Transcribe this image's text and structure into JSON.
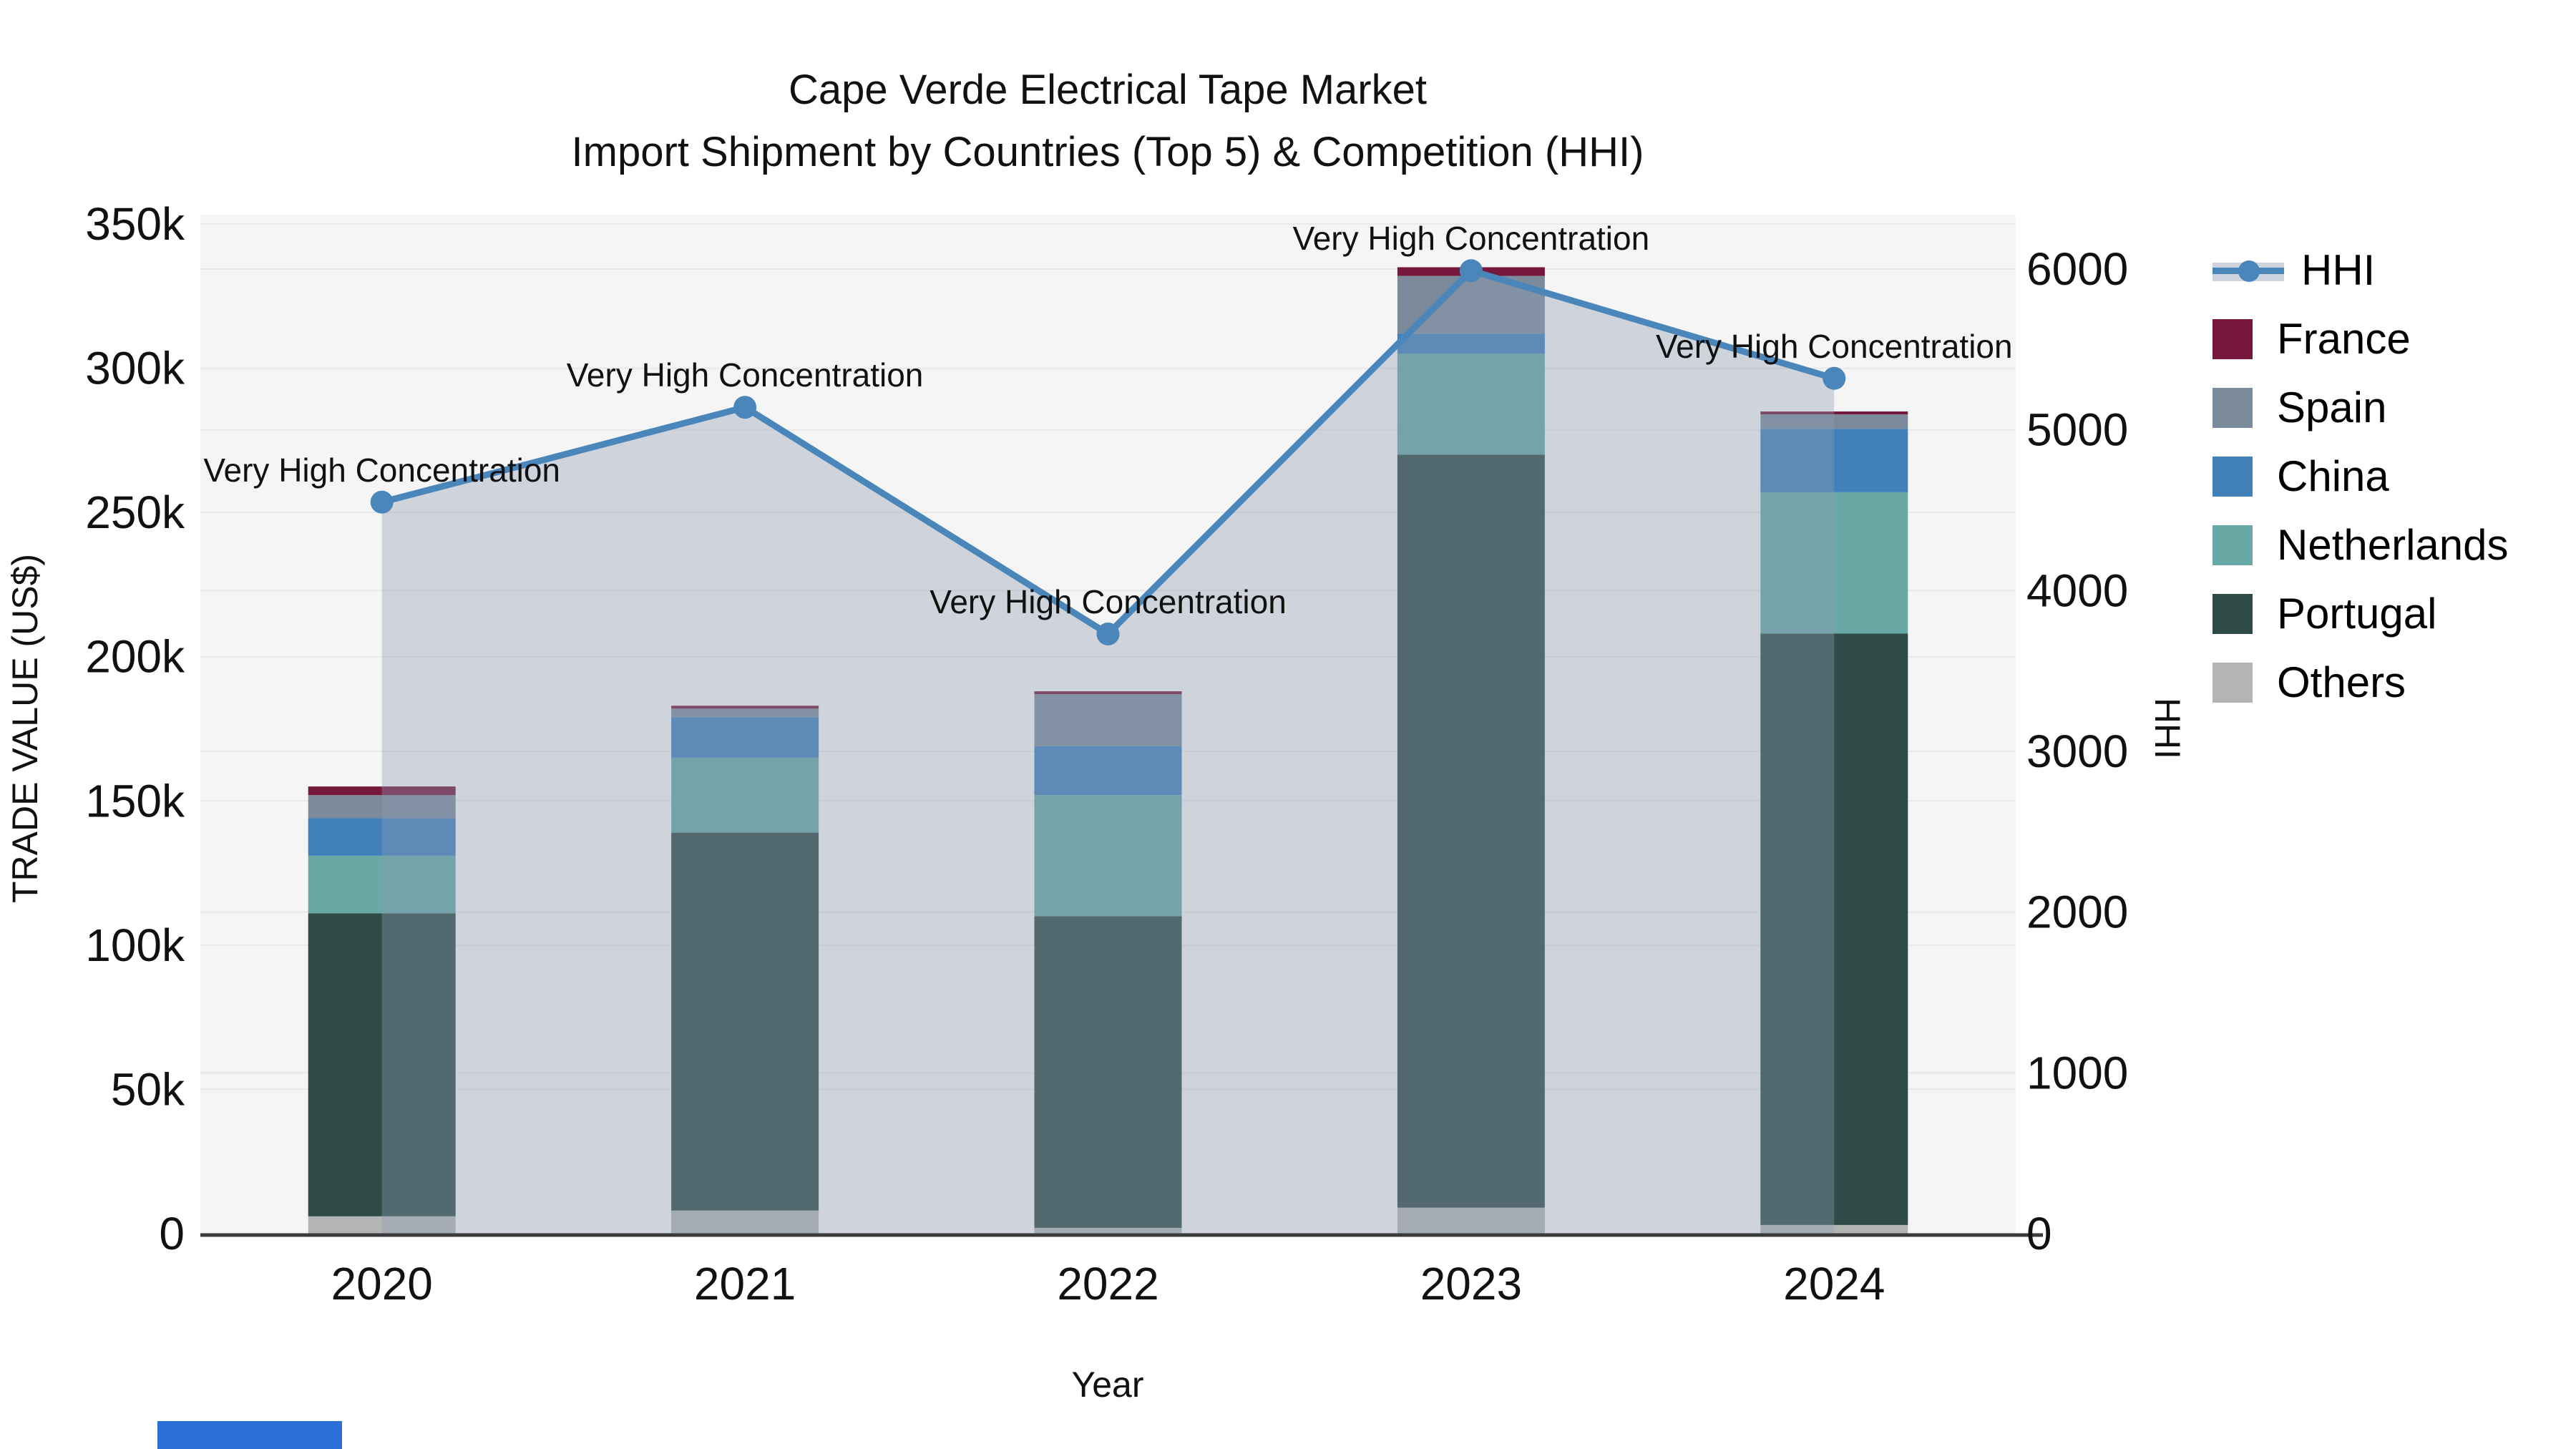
{
  "page": {
    "background": "#ffffff",
    "plot_background": "#f5f5f5"
  },
  "title": {
    "line1": "Cape Verde Electrical Tape Market",
    "line2": "Import Shipment by Countries (Top 5) & Competition (HHI)"
  },
  "axes": {
    "y_left": {
      "label": "TRADE VALUE (US$)",
      "ticks": [
        "0",
        "50k",
        "100k",
        "150k",
        "200k",
        "250k",
        "300k",
        "350k"
      ],
      "tick_values": [
        0,
        50000,
        100000,
        150000,
        200000,
        250000,
        300000,
        350000
      ],
      "max": 350000
    },
    "y_right": {
      "label": "HHI",
      "ticks": [
        "0",
        "1000",
        "2000",
        "3000",
        "4000",
        "5000",
        "6000"
      ],
      "tick_values": [
        0,
        1000,
        2000,
        3000,
        4000,
        5000,
        6000
      ],
      "max": 6000
    },
    "x": {
      "label": "Year"
    }
  },
  "chart_data": {
    "type": "combo: stacked-bar + line-with-area",
    "categories": [
      "2020",
      "2021",
      "2022",
      "2023",
      "2024"
    ],
    "stack_order_bottom_to_top": [
      "Others",
      "Portugal",
      "Netherlands",
      "China",
      "Spain",
      "France"
    ],
    "series": [
      {
        "name": "Others",
        "color": "#b2b5b4",
        "values": [
          6000,
          8000,
          2000,
          9000,
          3000
        ]
      },
      {
        "name": "Portugal",
        "color": "#2f4b47",
        "values": [
          105000,
          131000,
          108000,
          261000,
          205000
        ]
      },
      {
        "name": "Netherlands",
        "color": "#68a8a5",
        "values": [
          20000,
          26000,
          42000,
          35000,
          49000
        ]
      },
      {
        "name": "China",
        "color": "#4180bb",
        "values": [
          13000,
          14000,
          17000,
          7000,
          22000
        ]
      },
      {
        "name": "Spain",
        "color": "#7c8b9b",
        "values": [
          8000,
          3000,
          18000,
          20000,
          5000
        ]
      },
      {
        "name": "France",
        "color": "#76173c",
        "values": [
          3000,
          1000,
          1000,
          3000,
          1000
        ]
      }
    ],
    "line": {
      "name": "HHI",
      "color": "#4a86ba",
      "area_color": "rgba(141,155,178,0.38)",
      "values": [
        4550,
        5140,
        3730,
        5990,
        5320
      ],
      "annotations": [
        "Very High Concentration",
        "Very High Concentration",
        "Very High Concentration",
        "Very High Concentration",
        "Very High Concentration"
      ]
    },
    "grid": {
      "color": "#e8e8e8",
      "axis_line_color": "#3a3a3a"
    },
    "legend_position": "right"
  },
  "legend": {
    "items": [
      {
        "label": "HHI",
        "type": "line",
        "color": "#4a86ba"
      },
      {
        "label": "France",
        "type": "patch",
        "color": "#76173c"
      },
      {
        "label": "Spain",
        "type": "patch",
        "color": "#7c8b9b"
      },
      {
        "label": "China",
        "type": "patch",
        "color": "#4180bb"
      },
      {
        "label": "Netherlands",
        "type": "patch",
        "color": "#68a8a5"
      },
      {
        "label": "Portugal",
        "type": "patch",
        "color": "#2f4b47"
      },
      {
        "label": "Others",
        "type": "patch",
        "color": "#b2b5b4"
      }
    ]
  },
  "artifact": {
    "color": "#2b6fd8"
  }
}
